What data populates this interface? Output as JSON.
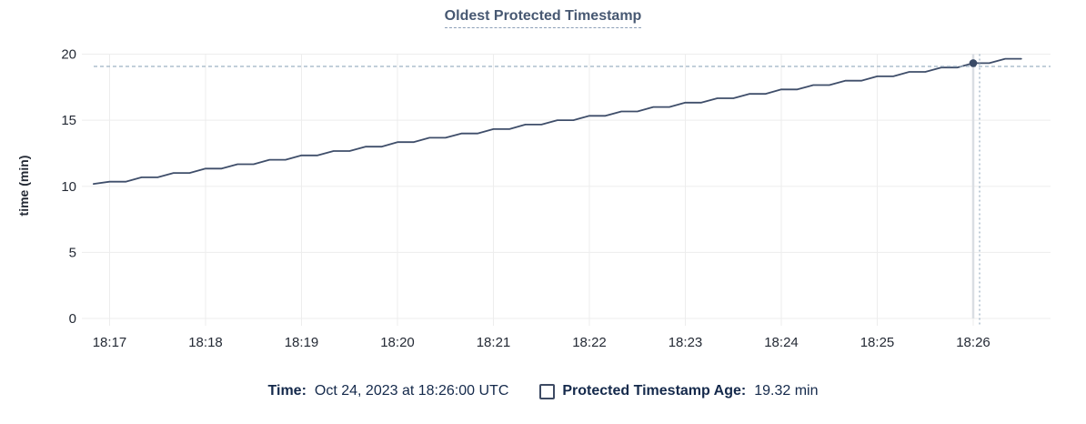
{
  "title": {
    "text": "Oldest Protected Timestamp"
  },
  "legend": {
    "time_label": "Time:",
    "time_value": "Oct 24, 2023 at 18:26:00 UTC",
    "series_label": "Protected Timestamp Age:",
    "series_value": "19.32 min"
  },
  "colors": {
    "title_text": "#475872",
    "legend_text": "#14294b",
    "series_line": "#3f4e6a",
    "dot": "#3a4a66",
    "crosshair": "#9eb2c3",
    "grid": "#ededed",
    "hover_guideline": "#dadee3",
    "axis_text": "#242a35"
  },
  "chart_data": {
    "type": "line",
    "title": "Oldest Protected Timestamp",
    "xlabel": "",
    "ylabel": "time (min)",
    "ylim": [
      0,
      20
    ],
    "yticks": [
      0,
      5,
      10,
      15,
      20
    ],
    "xtick_labels": [
      "18:17",
      "18:18",
      "18:19",
      "18:20",
      "18:21",
      "18:22",
      "18:23",
      "18:24",
      "18:25",
      "18:26"
    ],
    "grid": true,
    "legend_position": "bottom",
    "series": [
      {
        "name": "Protected Timestamp Age",
        "unit": "min",
        "points_seconds_after_1800_vs_min": [
          [
            1010,
            10.18
          ],
          [
            1020,
            10.35
          ],
          [
            1030,
            10.35
          ],
          [
            1040,
            10.68
          ],
          [
            1050,
            10.68
          ],
          [
            1060,
            11.01
          ],
          [
            1070,
            11.01
          ],
          [
            1080,
            11.34
          ],
          [
            1090,
            11.34
          ],
          [
            1100,
            11.67
          ],
          [
            1110,
            11.67
          ],
          [
            1120,
            12.01
          ],
          [
            1130,
            12.01
          ],
          [
            1140,
            12.34
          ],
          [
            1150,
            12.34
          ],
          [
            1160,
            12.67
          ],
          [
            1170,
            12.67
          ],
          [
            1180,
            13.0
          ],
          [
            1190,
            13.0
          ],
          [
            1200,
            13.34
          ],
          [
            1210,
            13.34
          ],
          [
            1220,
            13.67
          ],
          [
            1230,
            13.67
          ],
          [
            1240,
            14.0
          ],
          [
            1250,
            14.0
          ],
          [
            1260,
            14.33
          ],
          [
            1270,
            14.33
          ],
          [
            1280,
            14.67
          ],
          [
            1290,
            14.67
          ],
          [
            1300,
            15.0
          ],
          [
            1310,
            15.0
          ],
          [
            1320,
            15.33
          ],
          [
            1330,
            15.33
          ],
          [
            1340,
            15.66
          ],
          [
            1350,
            15.66
          ],
          [
            1360,
            16.0
          ],
          [
            1370,
            16.0
          ],
          [
            1380,
            16.33
          ],
          [
            1390,
            16.33
          ],
          [
            1400,
            16.66
          ],
          [
            1410,
            16.66
          ],
          [
            1420,
            16.99
          ],
          [
            1430,
            16.99
          ],
          [
            1440,
            17.33
          ],
          [
            1450,
            17.33
          ],
          [
            1460,
            17.66
          ],
          [
            1470,
            17.66
          ],
          [
            1480,
            17.99
          ],
          [
            1490,
            17.99
          ],
          [
            1500,
            18.32
          ],
          [
            1510,
            18.32
          ],
          [
            1520,
            18.66
          ],
          [
            1530,
            18.66
          ],
          [
            1540,
            18.99
          ],
          [
            1550,
            18.99
          ],
          [
            1560,
            19.32
          ],
          [
            1570,
            19.32
          ],
          [
            1580,
            19.65
          ],
          [
            1590,
            19.65
          ]
        ]
      }
    ],
    "hover": {
      "hovered_time": "18:26:00",
      "point_seconds": 1560,
      "value_min": 19.32,
      "mouse_seconds": 1564,
      "mouse_value_min": 19.07
    }
  }
}
